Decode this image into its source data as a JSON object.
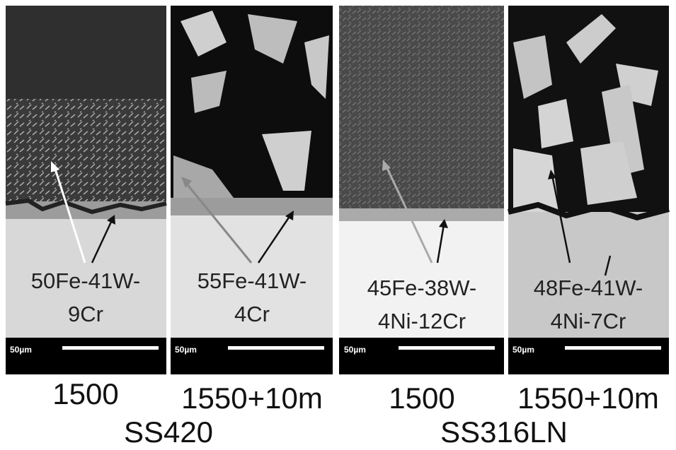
{
  "panels": [
    {
      "label_lines": [
        "50Fe-41W-",
        "9Cr"
      ],
      "scale_bar": "50µm",
      "condition": "1500"
    },
    {
      "label_lines": [
        "55Fe-41W-",
        "4Cr"
      ],
      "scale_bar": "50µm",
      "condition": "1550+10m"
    },
    {
      "label_lines": [
        "45Fe-38W-",
        "4Ni-12Cr"
      ],
      "scale_bar": "50µm",
      "condition": "1500"
    },
    {
      "label_lines": [
        "48Fe-41W-",
        "4Ni-7Cr"
      ],
      "scale_bar": "50µm",
      "condition": "1550+10m"
    }
  ],
  "groups": [
    {
      "label": "SS420"
    },
    {
      "label": "SS316LN"
    }
  ]
}
